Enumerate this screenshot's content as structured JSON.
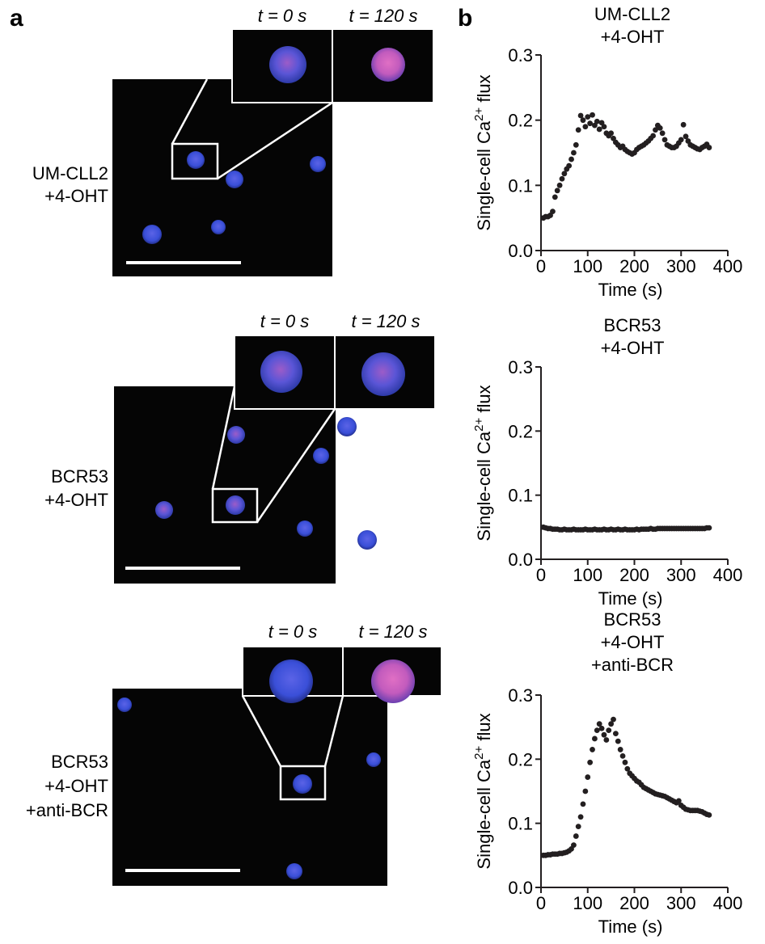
{
  "panel_labels": {
    "a": "a",
    "b": "b"
  },
  "microscopy_rows": [
    {
      "condition_lines": [
        "UM-CLL2",
        "+4-OHT"
      ],
      "inset_labels": [
        "t = 0 s",
        "t = 120 s"
      ]
    },
    {
      "condition_lines": [
        "BCR53",
        "+4-OHT"
      ],
      "inset_labels": [
        "t = 0 s",
        "t = 120 s"
      ]
    },
    {
      "condition_lines": [
        "BCR53",
        "+4-OHT",
        "+anti-BCR"
      ],
      "inset_labels": [
        "t = 0 s",
        "t = 120 s"
      ]
    }
  ],
  "colors": {
    "cell": "#3a4fd8",
    "cell_pink": "#c25bbd",
    "marker": "#231f20",
    "image_bg": "#050505"
  },
  "chart_data": [
    {
      "type": "scatter",
      "title_lines": [
        "UM-CLL2",
        "+4-OHT"
      ],
      "xlabel": "Time (s)",
      "ylabel_main": "Single-cell Ca",
      "ylabel_sup": "2+",
      "ylabel_tail": " flux",
      "xlim": [
        0,
        400
      ],
      "ylim": [
        0,
        0.3
      ],
      "xticks": [
        "0",
        "100",
        "200",
        "300",
        "400"
      ],
      "yticks": [
        "0.0",
        "0.1",
        "0.2",
        "0.3"
      ],
      "x": [
        5,
        10,
        15,
        20,
        25,
        30,
        35,
        40,
        45,
        50,
        55,
        60,
        65,
        70,
        75,
        80,
        85,
        90,
        95,
        100,
        105,
        110,
        115,
        120,
        125,
        130,
        135,
        140,
        145,
        150,
        155,
        160,
        165,
        170,
        175,
        180,
        185,
        190,
        195,
        200,
        205,
        210,
        215,
        220,
        225,
        230,
        235,
        240,
        245,
        250,
        255,
        260,
        265,
        270,
        275,
        280,
        285,
        290,
        295,
        300,
        305,
        310,
        315,
        320,
        325,
        330,
        335,
        340,
        345,
        350,
        355,
        360
      ],
      "y": [
        0.05,
        0.052,
        0.052,
        0.054,
        0.06,
        0.082,
        0.092,
        0.1,
        0.11,
        0.118,
        0.125,
        0.13,
        0.14,
        0.15,
        0.162,
        0.185,
        0.207,
        0.2,
        0.19,
        0.205,
        0.195,
        0.208,
        0.192,
        0.198,
        0.186,
        0.196,
        0.19,
        0.18,
        0.176,
        0.18,
        0.172,
        0.166,
        0.162,
        0.158,
        0.16,
        0.155,
        0.152,
        0.15,
        0.148,
        0.15,
        0.155,
        0.158,
        0.16,
        0.162,
        0.165,
        0.168,
        0.172,
        0.176,
        0.185,
        0.192,
        0.188,
        0.18,
        0.17,
        0.162,
        0.16,
        0.158,
        0.158,
        0.16,
        0.165,
        0.17,
        0.193,
        0.175,
        0.168,
        0.162,
        0.16,
        0.158,
        0.156,
        0.155,
        0.158,
        0.16,
        0.163,
        0.158
      ]
    },
    {
      "type": "scatter",
      "title_lines": [
        "BCR53",
        "+4-OHT"
      ],
      "xlabel": "Time (s)",
      "ylabel_main": "Single-cell Ca",
      "ylabel_sup": "2+",
      "ylabel_tail": " flux",
      "xlim": [
        0,
        400
      ],
      "ylim": [
        0,
        0.3
      ],
      "xticks": [
        "0",
        "100",
        "200",
        "300",
        "400"
      ],
      "yticks": [
        "0.0",
        "0.1",
        "0.2",
        "0.3"
      ],
      "x": [
        5,
        10,
        15,
        20,
        25,
        30,
        35,
        40,
        45,
        50,
        55,
        60,
        65,
        70,
        75,
        80,
        85,
        90,
        95,
        100,
        105,
        110,
        115,
        120,
        125,
        130,
        135,
        140,
        145,
        150,
        155,
        160,
        165,
        170,
        175,
        180,
        185,
        190,
        195,
        200,
        205,
        210,
        215,
        220,
        225,
        230,
        235,
        240,
        245,
        250,
        255,
        260,
        265,
        270,
        275,
        280,
        285,
        290,
        295,
        300,
        305,
        310,
        315,
        320,
        325,
        330,
        335,
        340,
        345,
        350,
        355,
        360
      ],
      "y": [
        0.05,
        0.049,
        0.048,
        0.048,
        0.047,
        0.047,
        0.047,
        0.046,
        0.046,
        0.047,
        0.046,
        0.046,
        0.046,
        0.047,
        0.046,
        0.046,
        0.046,
        0.046,
        0.047,
        0.046,
        0.046,
        0.046,
        0.047,
        0.046,
        0.046,
        0.046,
        0.047,
        0.046,
        0.046,
        0.047,
        0.046,
        0.046,
        0.047,
        0.046,
        0.046,
        0.047,
        0.046,
        0.046,
        0.046,
        0.046,
        0.047,
        0.046,
        0.047,
        0.047,
        0.047,
        0.047,
        0.048,
        0.047,
        0.047,
        0.048,
        0.048,
        0.048,
        0.048,
        0.048,
        0.048,
        0.048,
        0.048,
        0.048,
        0.048,
        0.048,
        0.048,
        0.048,
        0.048,
        0.048,
        0.048,
        0.048,
        0.048,
        0.048,
        0.048,
        0.048,
        0.049,
        0.049
      ]
    },
    {
      "type": "scatter",
      "title_lines": [
        "BCR53",
        "+4-OHT",
        "+anti-BCR"
      ],
      "xlabel": "Time (s)",
      "ylabel_main": "Single-cell Ca",
      "ylabel_sup": "2+",
      "ylabel_tail": " flux",
      "xlim": [
        0,
        400
      ],
      "ylim": [
        0,
        0.3
      ],
      "xticks": [
        "0",
        "100",
        "200",
        "300",
        "400"
      ],
      "yticks": [
        "0.0",
        "0.1",
        "0.2",
        "0.3"
      ],
      "x": [
        5,
        10,
        15,
        20,
        25,
        30,
        35,
        40,
        45,
        50,
        55,
        60,
        65,
        70,
        75,
        80,
        85,
        90,
        95,
        100,
        105,
        110,
        115,
        120,
        125,
        130,
        135,
        140,
        145,
        150,
        155,
        160,
        165,
        170,
        175,
        180,
        185,
        190,
        195,
        200,
        205,
        210,
        215,
        220,
        225,
        230,
        235,
        240,
        245,
        250,
        255,
        260,
        265,
        270,
        275,
        280,
        285,
        290,
        295,
        300,
        305,
        310,
        315,
        320,
        325,
        330,
        335,
        340,
        345,
        350,
        355,
        360
      ],
      "y": [
        0.05,
        0.05,
        0.051,
        0.051,
        0.052,
        0.052,
        0.052,
        0.053,
        0.053,
        0.054,
        0.055,
        0.057,
        0.06,
        0.066,
        0.08,
        0.095,
        0.11,
        0.13,
        0.15,
        0.172,
        0.195,
        0.215,
        0.232,
        0.245,
        0.255,
        0.248,
        0.238,
        0.23,
        0.245,
        0.255,
        0.262,
        0.24,
        0.228,
        0.215,
        0.205,
        0.195,
        0.185,
        0.178,
        0.174,
        0.17,
        0.166,
        0.164,
        0.16,
        0.156,
        0.154,
        0.152,
        0.15,
        0.148,
        0.146,
        0.145,
        0.144,
        0.143,
        0.142,
        0.14,
        0.138,
        0.136,
        0.134,
        0.132,
        0.135,
        0.128,
        0.125,
        0.122,
        0.121,
        0.12,
        0.12,
        0.12,
        0.12,
        0.119,
        0.118,
        0.116,
        0.114,
        0.113
      ]
    }
  ]
}
